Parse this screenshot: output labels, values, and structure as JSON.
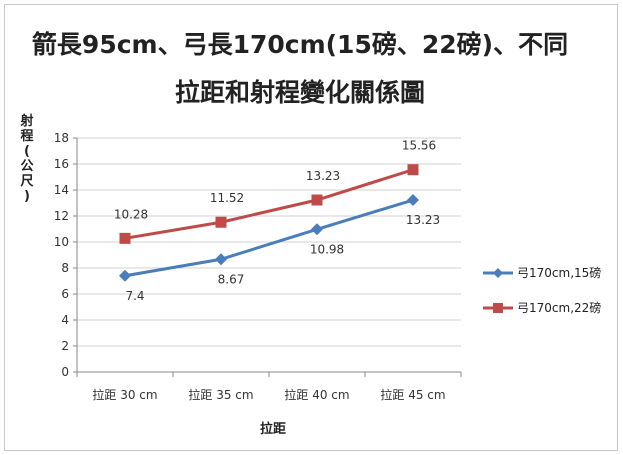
{
  "chart_data": {
    "type": "line",
    "title_line1": "箭長95cm、弓長170cm(15磅、22磅)、不同",
    "title_line2": "拉距和射程變化關係圖",
    "ylabel": "射程(公尺)",
    "xlabel": "拉距",
    "categories": [
      "拉距 30 cm",
      "拉距 35 cm",
      "拉距 40 cm",
      "拉距 45 cm"
    ],
    "ylim": [
      0,
      18
    ],
    "yticks": [
      0,
      2,
      4,
      6,
      8,
      10,
      12,
      14,
      16,
      18
    ],
    "grid": true,
    "legend_position": "right",
    "series": [
      {
        "name": "弓170cm,15磅",
        "color": "#4a7ebb",
        "marker": "diamond",
        "values": [
          7.4,
          8.67,
          10.98,
          13.23
        ],
        "labels": [
          "7.4",
          "8.67",
          "10.98",
          "13.23"
        ]
      },
      {
        "name": "弓170cm,22磅",
        "color": "#be4b48",
        "marker": "square",
        "values": [
          10.28,
          11.52,
          13.23,
          15.56
        ],
        "labels": [
          "10.28",
          "11.52",
          "13.23",
          "15.56"
        ]
      }
    ]
  }
}
